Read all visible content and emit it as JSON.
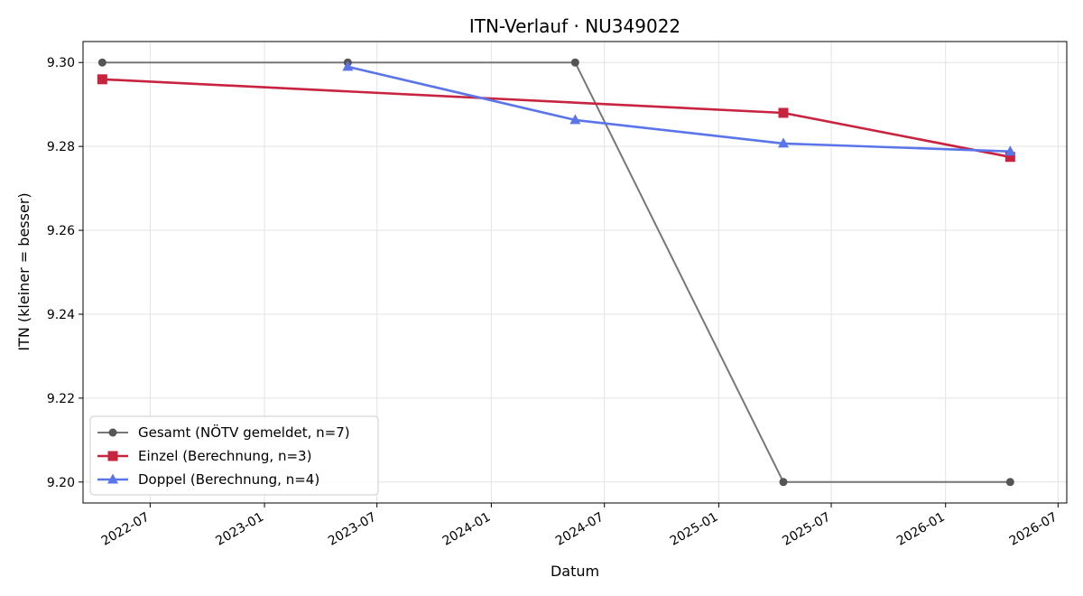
{
  "chart_data": {
    "type": "line",
    "title": "ITN-Verlauf · NU349022",
    "xlabel": "Datum",
    "ylabel": "ITN  (kleiner = besser)",
    "x_type": "date",
    "xlim": [
      "2022-03-15",
      "2026-07-15"
    ],
    "ylim": [
      9.195,
      9.305
    ],
    "x_ticks": [
      "2022-07-01",
      "2023-01-01",
      "2023-07-01",
      "2024-01-01",
      "2024-07-01",
      "2025-01-01",
      "2025-07-01",
      "2026-01-01",
      "2026-07-01"
    ],
    "x_tick_labels": [
      "2022-07",
      "2023-01",
      "2023-07",
      "2024-01",
      "2024-07",
      "2025-01",
      "2025-07",
      "2026-01",
      "2026-07"
    ],
    "y_ticks": [
      9.2,
      9.22,
      9.24,
      9.26,
      9.28,
      9.3
    ],
    "y_tick_labels": [
      "9.20",
      "9.22",
      "9.24",
      "9.26",
      "9.28",
      "9.30"
    ],
    "grid": true,
    "legend_position": "lower-left",
    "series": [
      {
        "name": "Gesamt (NÖTV gemeldet, n=7)",
        "color": "#777777",
        "marker_color": "#555555",
        "marker": "circle",
        "points": [
          {
            "x": "2022-04-15",
            "y": 9.3
          },
          {
            "x": "2023-05-15",
            "y": 9.3
          },
          {
            "x": "2024-05-15",
            "y": 9.3
          },
          {
            "x": "2025-04-15",
            "y": 9.2
          },
          {
            "x": "2026-04-15",
            "y": 9.2
          }
        ]
      },
      {
        "name": "Einzel (Berechnung, n=3)",
        "color": "#c8233f",
        "marker_color": "#c8233f",
        "marker": "square",
        "points": [
          {
            "x": "2022-04-15",
            "y": 9.296
          },
          {
            "x": "2025-04-15",
            "y": 9.288
          },
          {
            "x": "2026-04-15",
            "y": 9.2775
          }
        ]
      },
      {
        "name": "Doppel (Berechnung, n=4)",
        "color": "#5a75ea",
        "marker_color": "#5a75ea",
        "marker": "triangle",
        "points": [
          {
            "x": "2023-05-15",
            "y": 9.299
          },
          {
            "x": "2024-05-15",
            "y": 9.2863
          },
          {
            "x": "2025-04-15",
            "y": 9.2807
          },
          {
            "x": "2026-04-15",
            "y": 9.2788
          }
        ]
      }
    ]
  }
}
